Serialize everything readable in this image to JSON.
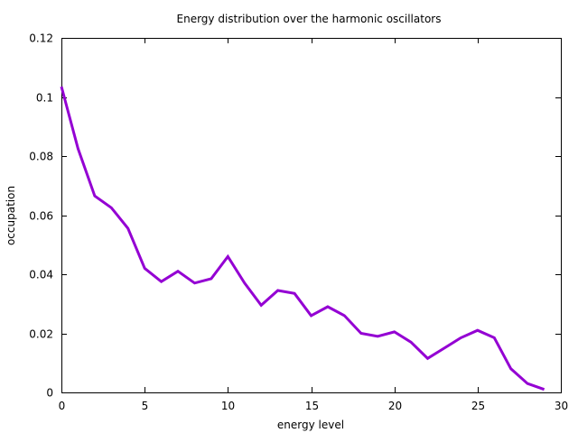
{
  "chart_data": {
    "type": "line",
    "title": "Energy distribution over the harmonic oscillators",
    "xlabel": "energy level",
    "ylabel": "occupation",
    "xlim": [
      0,
      30
    ],
    "ylim": [
      0,
      0.12
    ],
    "xticks": [
      0,
      5,
      10,
      15,
      20,
      25,
      30
    ],
    "xtick_labels": [
      "0",
      "5",
      "10",
      "15",
      "20",
      "25",
      "30"
    ],
    "yticks": [
      0,
      0.02,
      0.04,
      0.06,
      0.08,
      0.1,
      0.12
    ],
    "ytick_labels": [
      "0",
      "0.02",
      "0.04",
      "0.06",
      "0.08",
      "0.1",
      "0.12"
    ],
    "grid": false,
    "legend": "none",
    "series": [
      {
        "color": "#9400d3",
        "x": [
          0,
          1,
          2,
          3,
          4,
          5,
          6,
          7,
          8,
          9,
          10,
          11,
          12,
          13,
          14,
          15,
          16,
          17,
          18,
          19,
          20,
          21,
          22,
          23,
          24,
          25,
          26,
          27,
          28,
          29
        ],
        "y": [
          0.1035,
          0.0825,
          0.0665,
          0.0625,
          0.0555,
          0.042,
          0.0375,
          0.041,
          0.037,
          0.0385,
          0.046,
          0.037,
          0.0295,
          0.0345,
          0.0335,
          0.026,
          0.029,
          0.026,
          0.02,
          0.019,
          0.0205,
          0.017,
          0.0115,
          0.015,
          0.0185,
          0.021,
          0.0185,
          0.008,
          0.003,
          0.001
        ]
      }
    ]
  }
}
